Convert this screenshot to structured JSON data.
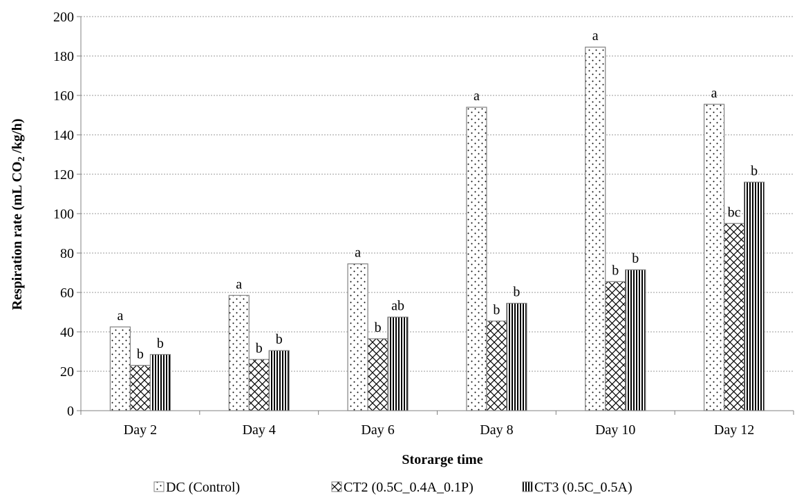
{
  "chart_data": {
    "type": "bar",
    "title": "",
    "xlabel": "Storarge time",
    "ylabel_main": "Respiration rate (mL CO",
    "ylabel_sub": "2",
    "ylabel_tail": " /kg/h)",
    "ylim": [
      0,
      200
    ],
    "yticks": [
      "0",
      "20",
      "40",
      "60",
      "80",
      "100",
      "120",
      "140",
      "160",
      "180",
      "200"
    ],
    "grid": "horizontal dotted",
    "legend_position": "bottom",
    "categories": [
      "Day 2",
      "Day 4",
      "Day 6",
      "Day 8",
      "Day 10",
      "Day 12"
    ],
    "series": [
      {
        "name": "DC (Control)",
        "pattern": "dots",
        "values": [
          42.5,
          58.5,
          74.5,
          154,
          184.5,
          155.5
        ],
        "labels": [
          "a",
          "a",
          "a",
          "a",
          "a",
          "a"
        ]
      },
      {
        "name": "CT2 (0.5C_0.4A_0.1P)",
        "pattern": "crosshatch",
        "values": [
          23,
          26,
          36.5,
          45.5,
          65.5,
          95
        ],
        "labels": [
          "b",
          "b",
          "b",
          "b",
          "b",
          "bc"
        ]
      },
      {
        "name": "CT3 (0.5C_0.5A)",
        "pattern": "vertical-stripes",
        "values": [
          28.5,
          30.5,
          47.5,
          54.5,
          71.5,
          116
        ],
        "labels": [
          "b",
          "b",
          "ab",
          "b",
          "b",
          "b"
        ]
      }
    ],
    "colors": {
      "bar_stroke": "#808080",
      "grid": "#9a9a9a",
      "axis": "#808080",
      "ink": "#000000"
    }
  }
}
